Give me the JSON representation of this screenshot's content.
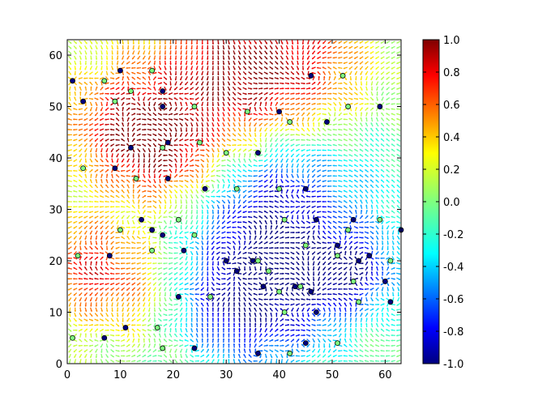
{
  "chart_data": {
    "type": "quiver",
    "title": "",
    "xlabel": "",
    "ylabel": "",
    "xlim": [
      0,
      63
    ],
    "ylim": [
      0,
      63
    ],
    "x_ticks": [
      0,
      10,
      20,
      30,
      40,
      50,
      60
    ],
    "y_ticks": [
      0,
      10,
      20,
      30,
      40,
      50,
      60
    ],
    "grid": false,
    "colormap": "jet",
    "field_description": "Unit-vector orientation field on a 64x64 lattice; arrow color encodes a scalar in [-1, 1] (red regions upper-left/top, blue regions center/lower-right).",
    "colorbar": {
      "min": -1.0,
      "max": 1.0,
      "ticks": [
        "-1.0",
        "-0.8",
        "-0.6",
        "-0.4",
        "-0.2",
        "0.0",
        "0.2",
        "0.4",
        "0.6",
        "0.8",
        "1.0"
      ],
      "ticks_values": [
        -1.0,
        -0.8,
        -0.6,
        -0.4,
        -0.2,
        0.0,
        0.2,
        0.4,
        0.6,
        0.8,
        1.0
      ],
      "colors": [
        "#00007f",
        "#0000ff",
        "#007fff",
        "#00ffff",
        "#7fff7f",
        "#ffff00",
        "#ff7f00",
        "#ff0000",
        "#7f0000"
      ]
    },
    "vortices_positive": [
      [
        1,
        55
      ],
      [
        3,
        51
      ],
      [
        10,
        57
      ],
      [
        18,
        53
      ],
      [
        18,
        50
      ],
      [
        12,
        42
      ],
      [
        19,
        43
      ],
      [
        9,
        38
      ],
      [
        19,
        36
      ],
      [
        36,
        41
      ],
      [
        40,
        49
      ],
      [
        46,
        56
      ],
      [
        49,
        47
      ],
      [
        59,
        50
      ],
      [
        26,
        34
      ],
      [
        45,
        34
      ],
      [
        14,
        28
      ],
      [
        16,
        26
      ],
      [
        18,
        25
      ],
      [
        22,
        22
      ],
      [
        8,
        21
      ],
      [
        16,
        26
      ],
      [
        47,
        28
      ],
      [
        54,
        28
      ],
      [
        63,
        26
      ],
      [
        51,
        23
      ],
      [
        55,
        20
      ],
      [
        57,
        21
      ],
      [
        60,
        16
      ],
      [
        61,
        12
      ],
      [
        21,
        13
      ],
      [
        30,
        20
      ],
      [
        32,
        18
      ],
      [
        35,
        20
      ],
      [
        37,
        15
      ],
      [
        43,
        15
      ],
      [
        46,
        14
      ],
      [
        47,
        10
      ],
      [
        45,
        4
      ],
      [
        36,
        2
      ],
      [
        24,
        3
      ],
      [
        7,
        5
      ],
      [
        11,
        7
      ]
    ],
    "vortices_negative": [
      [
        7,
        55
      ],
      [
        12,
        53
      ],
      [
        16,
        57
      ],
      [
        9,
        51
      ],
      [
        18,
        42
      ],
      [
        24,
        50
      ],
      [
        25,
        43
      ],
      [
        30,
        41
      ],
      [
        34,
        49
      ],
      [
        42,
        47
      ],
      [
        53,
        50
      ],
      [
        52,
        56
      ],
      [
        3,
        38
      ],
      [
        13,
        36
      ],
      [
        32,
        34
      ],
      [
        40,
        34
      ],
      [
        10,
        26
      ],
      [
        21,
        28
      ],
      [
        24,
        25
      ],
      [
        16,
        22
      ],
      [
        2,
        21
      ],
      [
        41,
        28
      ],
      [
        45,
        23
      ],
      [
        51,
        21
      ],
      [
        53,
        26
      ],
      [
        59,
        28
      ],
      [
        61,
        20
      ],
      [
        54,
        16
      ],
      [
        55,
        12
      ],
      [
        36,
        20
      ],
      [
        38,
        18
      ],
      [
        40,
        14
      ],
      [
        44,
        15
      ],
      [
        41,
        10
      ],
      [
        27,
        13
      ],
      [
        17,
        7
      ],
      [
        18,
        3
      ],
      [
        42,
        2
      ],
      [
        51,
        4
      ],
      [
        1,
        5
      ]
    ]
  }
}
